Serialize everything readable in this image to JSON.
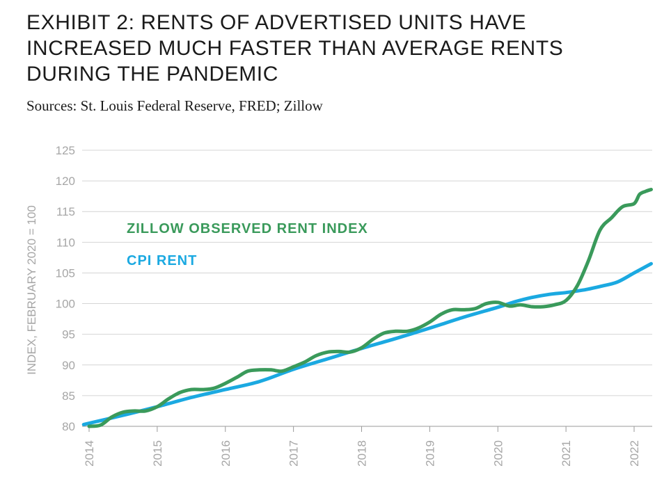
{
  "title": "EXHIBIT 2: RENTS OF ADVERTISED UNITS HAVE INCREASED MUCH FASTER THAN AVERAGE RENTS DURING THE PANDEMIC",
  "subtitle": "Sources: St. Louis Federal Reserve, FRED; Zillow",
  "chart_data": {
    "type": "line",
    "ylabel": "INDEX, FEBRUARY 2020 = 100",
    "ylim": [
      80,
      125
    ],
    "yticks": [
      80,
      85,
      90,
      95,
      100,
      105,
      110,
      115,
      120,
      125
    ],
    "xlim": [
      2014,
      2022.3
    ],
    "xticks": [
      2014,
      2015,
      2016,
      2017,
      2018,
      2019,
      2020,
      2021,
      2022
    ],
    "grid": true,
    "series": [
      {
        "name": "ZILLOW OBSERVED RENT INDEX",
        "color": "#3a9a5b",
        "x": [
          2014.0,
          2014.17,
          2014.33,
          2014.5,
          2014.67,
          2014.83,
          2015.0,
          2015.17,
          2015.33,
          2015.5,
          2015.67,
          2015.83,
          2016.0,
          2016.17,
          2016.33,
          2016.5,
          2016.67,
          2016.83,
          2017.0,
          2017.17,
          2017.33,
          2017.5,
          2017.67,
          2017.83,
          2018.0,
          2018.17,
          2018.33,
          2018.5,
          2018.67,
          2018.83,
          2019.0,
          2019.17,
          2019.33,
          2019.5,
          2019.67,
          2019.83,
          2020.0,
          2020.17,
          2020.33,
          2020.5,
          2020.67,
          2020.83,
          2021.0,
          2021.17,
          2021.33,
          2021.5,
          2021.67,
          2021.83,
          2022.0,
          2022.08,
          2022.17,
          2022.25
        ],
        "values": [
          80.0,
          80.2,
          81.5,
          82.3,
          82.5,
          82.5,
          83.2,
          84.5,
          85.5,
          86.0,
          86.0,
          86.2,
          87.0,
          88.0,
          89.0,
          89.2,
          89.2,
          89.0,
          89.7,
          90.5,
          91.5,
          92.1,
          92.2,
          92.1,
          92.8,
          94.2,
          95.2,
          95.5,
          95.5,
          96.0,
          97.0,
          98.3,
          99.0,
          99.0,
          99.2,
          100.0,
          100.2,
          99.6,
          99.8,
          99.5,
          99.5,
          99.8,
          100.5,
          103.0,
          107.0,
          112.0,
          114.0,
          115.8,
          116.3,
          117.8,
          118.3,
          118.6
        ]
      },
      {
        "name": "CPI RENT",
        "color": "#1ba9e1",
        "x": [
          2013.92,
          2014.5,
          2015.0,
          2015.5,
          2016.0,
          2016.5,
          2017.0,
          2017.5,
          2018.0,
          2018.5,
          2019.0,
          2019.5,
          2020.0,
          2020.25,
          2020.5,
          2020.75,
          2021.0,
          2021.25,
          2021.5,
          2021.75,
          2022.0,
          2022.25
        ],
        "values": [
          80.3,
          81.8,
          83.2,
          84.7,
          86.0,
          87.3,
          89.3,
          91.0,
          92.7,
          94.3,
          96.0,
          97.8,
          99.4,
          100.3,
          101.0,
          101.5,
          101.8,
          102.2,
          102.8,
          103.5,
          105.0,
          106.5
        ]
      }
    ]
  }
}
